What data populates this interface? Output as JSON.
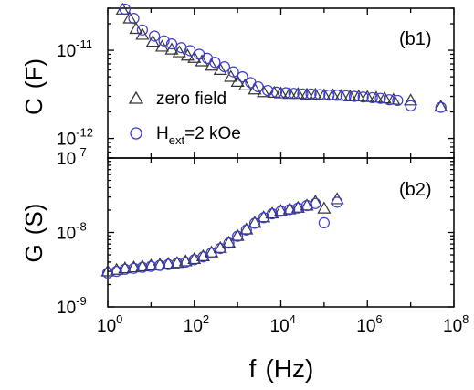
{
  "chart_data": [
    {
      "type": "scatter",
      "panel_label": "(b1)",
      "ylabel_parts": [
        "C",
        "(F)"
      ],
      "xscale": "log",
      "yscale": "log",
      "xlim": [
        1,
        100000000
      ],
      "ylim": [
        6e-13,
        3e-11
      ],
      "yticks": [
        {
          "value": 1e-12,
          "base": "10",
          "exp": "-12"
        },
        {
          "value": 1e-11,
          "base": "10",
          "exp": "-11"
        }
      ],
      "legend": {
        "position": "lower-left",
        "entries": [
          {
            "label": "zero field",
            "marker": "triangle"
          },
          {
            "label_main": "H",
            "label_sub": "ext",
            "label_rest": "=2 kOe",
            "marker": "circle"
          }
        ]
      },
      "series": [
        {
          "marker": "triangle",
          "color": "#333333",
          "points": [
            [
              2.2,
              2.9e-11
            ],
            [
              3.2,
              2.3e-11
            ],
            [
              4.5,
              1.75e-11
            ],
            [
              6.3,
              1.5e-11
            ],
            [
              11,
              1.25e-11
            ],
            [
              18,
              1.1e-11
            ],
            [
              30,
              1.02e-11
            ],
            [
              45,
              9.5e-12
            ],
            [
              70,
              8.7e-12
            ],
            [
              100,
              8.2e-12
            ],
            [
              150,
              7.5e-12
            ],
            [
              250,
              6.7e-12
            ],
            [
              400,
              6e-12
            ],
            [
              700,
              5e-12
            ],
            [
              1000,
              4.4e-12
            ],
            [
              1500,
              4e-12
            ],
            [
              2500,
              3.6e-12
            ],
            [
              4000,
              3.35e-12
            ],
            [
              7000,
              3.3e-12
            ],
            [
              10000,
              3.25e-12
            ],
            [
              16000,
              3.2e-12
            ],
            [
              25000,
              3.2e-12
            ],
            [
              40000,
              3.15e-12
            ],
            [
              63000,
              3.15e-12
            ],
            [
              100000,
              3.1e-12
            ],
            [
              160000,
              3.1e-12
            ],
            [
              250000,
              3.05e-12
            ],
            [
              400000,
              3e-12
            ],
            [
              630000,
              3e-12
            ],
            [
              1000000,
              2.95e-12
            ],
            [
              1600000,
              2.9e-12
            ],
            [
              2500000,
              2.85e-12
            ],
            [
              4000000,
              2.75e-12
            ],
            [
              10000000,
              2.7e-12
            ],
            [
              50000000,
              2.3e-12
            ]
          ]
        },
        {
          "marker": "circle",
          "color": "#3a3ad0",
          "points": [
            [
              2.5,
              3.3e-11
            ],
            [
              4,
              2.3e-11
            ],
            [
              6.3,
              1.7e-11
            ],
            [
              12,
              1.45e-11
            ],
            [
              20,
              1.28e-11
            ],
            [
              30,
              1.18e-11
            ],
            [
              50,
              1.07e-11
            ],
            [
              80,
              9.9e-12
            ],
            [
              130,
              9e-12
            ],
            [
              200,
              8.1e-12
            ],
            [
              300,
              7.3e-12
            ],
            [
              500,
              6.5e-12
            ],
            [
              800,
              5.7e-12
            ],
            [
              1300,
              5e-12
            ],
            [
              2000,
              4.3e-12
            ],
            [
              3000,
              3.85e-12
            ],
            [
              5000,
              3.5e-12
            ],
            [
              8000,
              3.35e-12
            ],
            [
              13000,
              3.3e-12
            ],
            [
              20000,
              3.25e-12
            ],
            [
              32000,
              3.2e-12
            ],
            [
              50000,
              3.2e-12
            ],
            [
              80000,
              3.15e-12
            ],
            [
              130000,
              3.1e-12
            ],
            [
              200000,
              3.1e-12
            ],
            [
              320000,
              3.05e-12
            ],
            [
              500000,
              3e-12
            ],
            [
              800000,
              2.95e-12
            ],
            [
              1300000,
              2.9e-12
            ],
            [
              2000000,
              2.85e-12
            ],
            [
              3200000,
              2.75e-12
            ],
            [
              5000000,
              2.7e-12
            ],
            [
              10000000,
              2.35e-12
            ],
            [
              50000000,
              2.25e-12
            ]
          ]
        }
      ]
    },
    {
      "type": "scatter",
      "panel_label": "(b2)",
      "ylabel_parts": [
        "G",
        "(S)"
      ],
      "xlabel_parts": [
        "f",
        "(Hz)"
      ],
      "xscale": "log",
      "yscale": "log",
      "xlim": [
        1,
        100000000
      ],
      "ylim": [
        1e-09,
        1e-07
      ],
      "xticks": [
        {
          "value": 1,
          "base": "10",
          "exp": "0"
        },
        {
          "value": 100,
          "base": "10",
          "exp": "2"
        },
        {
          "value": 10000,
          "base": "10",
          "exp": "4"
        },
        {
          "value": 1000000,
          "base": "10",
          "exp": "6"
        },
        {
          "value": 100000000,
          "base": "10",
          "exp": "8"
        }
      ],
      "yticks": [
        {
          "value": 1e-09,
          "base": "10",
          "exp": "-9"
        },
        {
          "value": 1e-08,
          "base": "10",
          "exp": "-8"
        },
        {
          "value": 1e-07,
          "base": "10",
          "exp": "-7"
        }
      ],
      "series": [
        {
          "marker": "triangle",
          "color": "#333333",
          "points": [
            [
              1,
              3e-09
            ],
            [
              1.6,
              3.15e-09
            ],
            [
              2.5,
              3.3e-09
            ],
            [
              4,
              3.4e-09
            ],
            [
              6.3,
              3.5e-09
            ],
            [
              10,
              3.6e-09
            ],
            [
              16,
              3.7e-09
            ],
            [
              25,
              3.8e-09
            ],
            [
              40,
              3.9e-09
            ],
            [
              63,
              4.1e-09
            ],
            [
              100,
              4.4e-09
            ],
            [
              160,
              4.8e-09
            ],
            [
              250,
              5.4e-09
            ],
            [
              400,
              6.2e-09
            ],
            [
              630,
              7.3e-09
            ],
            [
              1000,
              9e-09
            ],
            [
              1600,
              1.1e-08
            ],
            [
              2500,
              1.35e-08
            ],
            [
              4000,
              1.6e-08
            ],
            [
              6300,
              1.8e-08
            ],
            [
              10000,
              1.95e-08
            ],
            [
              16000,
              2.05e-08
            ],
            [
              25000,
              2.15e-08
            ],
            [
              40000,
              2.3e-08
            ],
            [
              63000,
              2.6e-08
            ],
            [
              100000,
              2.1e-08
            ],
            [
              200000,
              2.8e-08
            ]
          ]
        },
        {
          "marker": "circle",
          "color": "#3a3ad0",
          "points": [
            [
              1,
              2.85e-09
            ],
            [
              1.6,
              3e-09
            ],
            [
              2.5,
              3.2e-09
            ],
            [
              4,
              3.3e-09
            ],
            [
              6.3,
              3.4e-09
            ],
            [
              10,
              3.5e-09
            ],
            [
              16,
              3.6e-09
            ],
            [
              25,
              3.7e-09
            ],
            [
              40,
              3.85e-09
            ],
            [
              63,
              4e-09
            ],
            [
              100,
              4.3e-09
            ],
            [
              160,
              4.7e-09
            ],
            [
              250,
              5.3e-09
            ],
            [
              400,
              6.1e-09
            ],
            [
              630,
              7.2e-09
            ],
            [
              1000,
              8.9e-09
            ],
            [
              1600,
              1.08e-08
            ],
            [
              2500,
              1.33e-08
            ],
            [
              4000,
              1.58e-08
            ],
            [
              6300,
              1.78e-08
            ],
            [
              10000,
              1.93e-08
            ],
            [
              16000,
              2.03e-08
            ],
            [
              25000,
              2.13e-08
            ],
            [
              40000,
              2.3e-08
            ],
            [
              63000,
              2.45e-08
            ],
            [
              100000,
              1.35e-08
            ],
            [
              200000,
              2.55e-08
            ]
          ]
        }
      ]
    }
  ]
}
